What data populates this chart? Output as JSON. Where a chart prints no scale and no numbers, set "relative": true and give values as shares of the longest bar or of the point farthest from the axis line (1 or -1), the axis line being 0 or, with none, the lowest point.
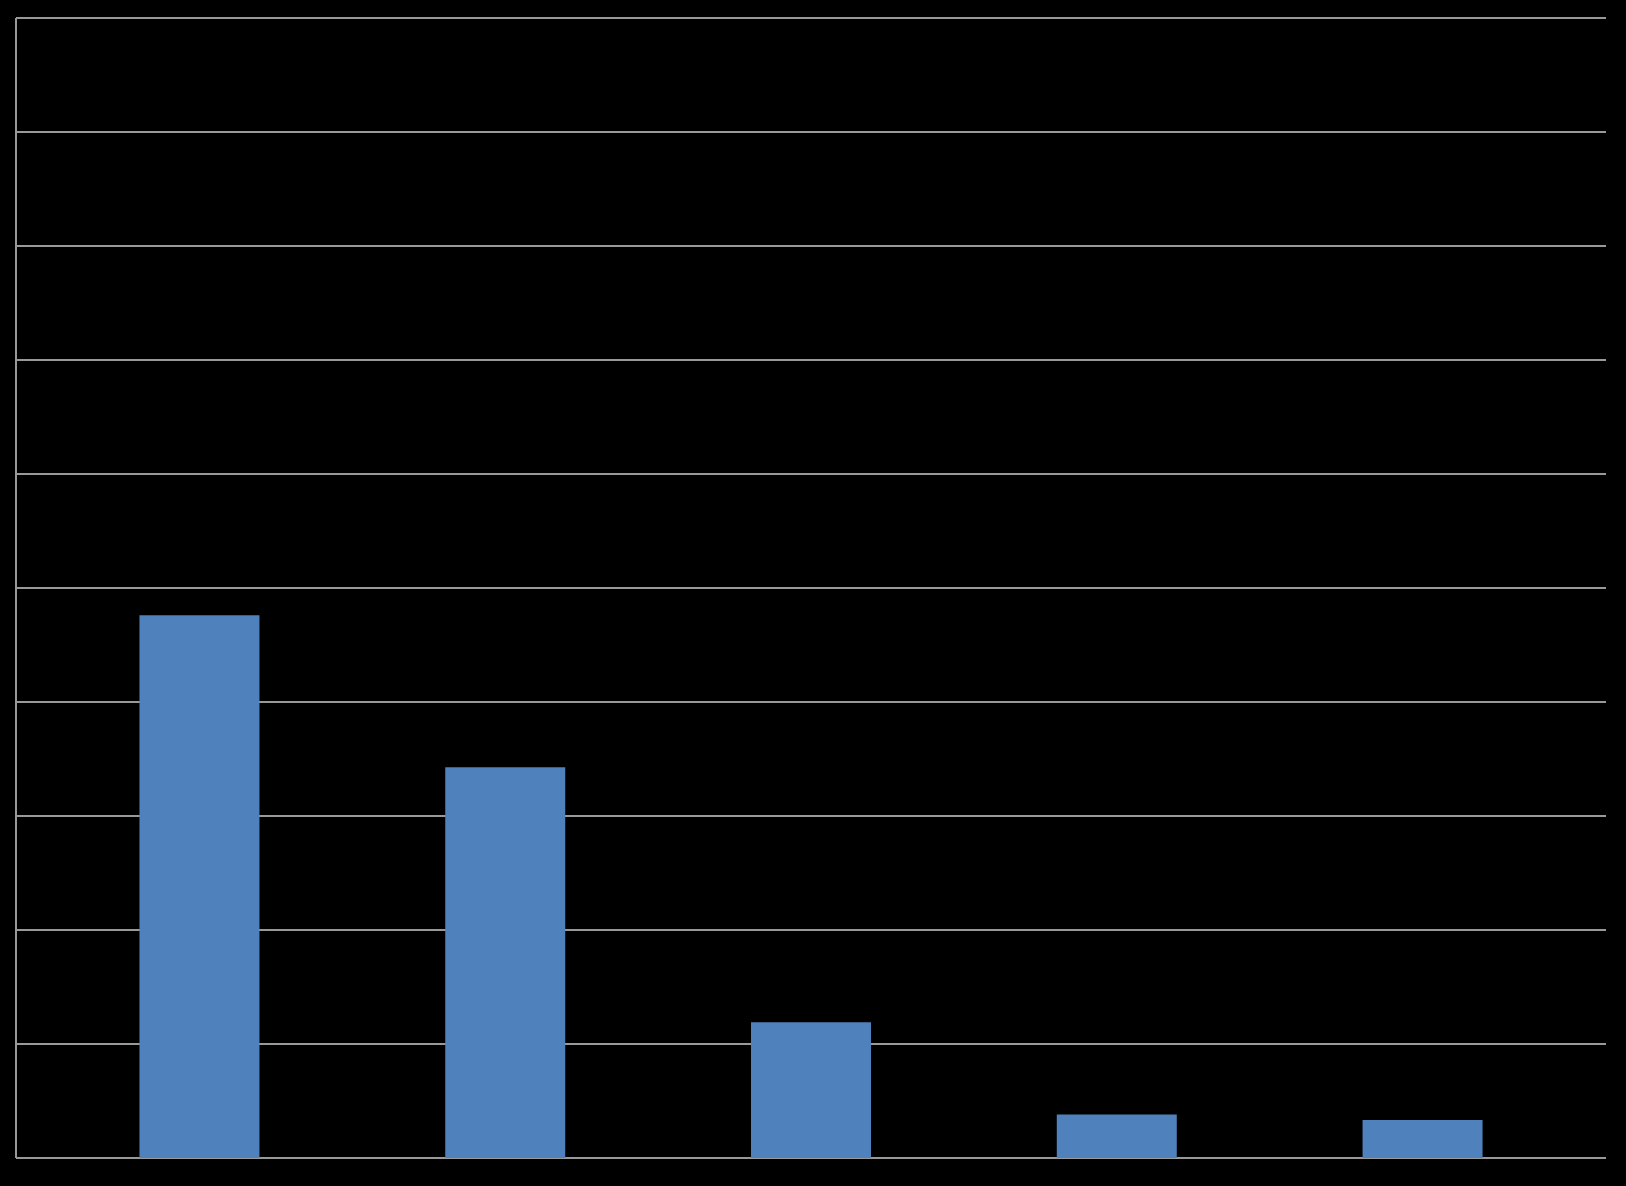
{
  "chart_data": {
    "type": "bar",
    "relative": true,
    "categories": [
      null,
      null,
      null,
      null,
      null
    ],
    "values": [
      1,
      0.72,
      0.25,
      0.08,
      0.07
    ],
    "color": "#4f81bd",
    "grid": "y"
  }
}
